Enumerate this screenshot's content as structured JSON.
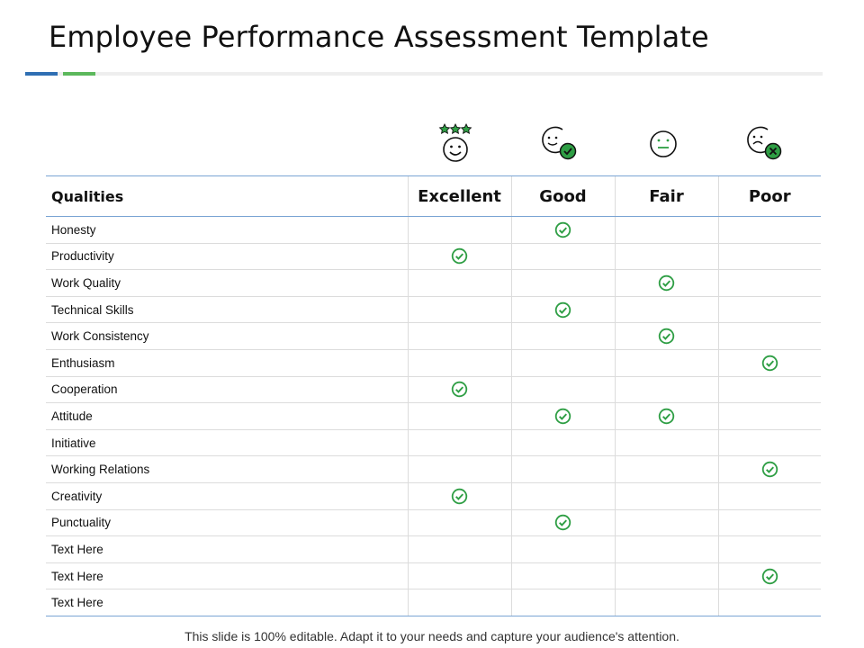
{
  "slide": {
    "title": "Employee Performance Assessment Template",
    "footer": "This slide is 100% editable. Adapt it to your needs and capture your audience's attention."
  },
  "colors": {
    "accent_blue": "#2f6fb3",
    "accent_green": "#5cb85c",
    "check_green": "#2e9e44",
    "table_line": "#7aa4d4"
  },
  "header_icons": [
    "smiley-with-stars-icon",
    "smiley-with-check-icon",
    "neutral-face-icon",
    "sad-face-with-x-icon"
  ],
  "table": {
    "headers": [
      "Qualities",
      "Excellent",
      "Good",
      "Fair",
      "Poor"
    ],
    "rows": [
      {
        "quality": "Honesty",
        "ratings": [
          false,
          true,
          false,
          false
        ]
      },
      {
        "quality": "Productivity",
        "ratings": [
          true,
          false,
          false,
          false
        ]
      },
      {
        "quality": "Work Quality",
        "ratings": [
          false,
          false,
          true,
          false
        ]
      },
      {
        "quality": "Technical Skills",
        "ratings": [
          false,
          true,
          false,
          false
        ]
      },
      {
        "quality": "Work Consistency",
        "ratings": [
          false,
          false,
          true,
          false
        ]
      },
      {
        "quality": "Enthusiasm",
        "ratings": [
          false,
          false,
          false,
          true
        ]
      },
      {
        "quality": "Cooperation",
        "ratings": [
          true,
          false,
          false,
          false
        ]
      },
      {
        "quality": "Attitude",
        "ratings": [
          false,
          true,
          true,
          false
        ]
      },
      {
        "quality": "Initiative",
        "ratings": [
          false,
          false,
          false,
          false
        ]
      },
      {
        "quality": "Working Relations",
        "ratings": [
          false,
          false,
          false,
          true
        ]
      },
      {
        "quality": "Creativity",
        "ratings": [
          true,
          false,
          false,
          false
        ]
      },
      {
        "quality": "Punctuality",
        "ratings": [
          false,
          true,
          false,
          false
        ]
      },
      {
        "quality": "Text Here",
        "ratings": [
          false,
          false,
          false,
          false
        ]
      },
      {
        "quality": "Text Here",
        "ratings": [
          false,
          false,
          false,
          true
        ]
      },
      {
        "quality": "Text Here",
        "ratings": [
          false,
          false,
          false,
          false
        ]
      }
    ]
  }
}
